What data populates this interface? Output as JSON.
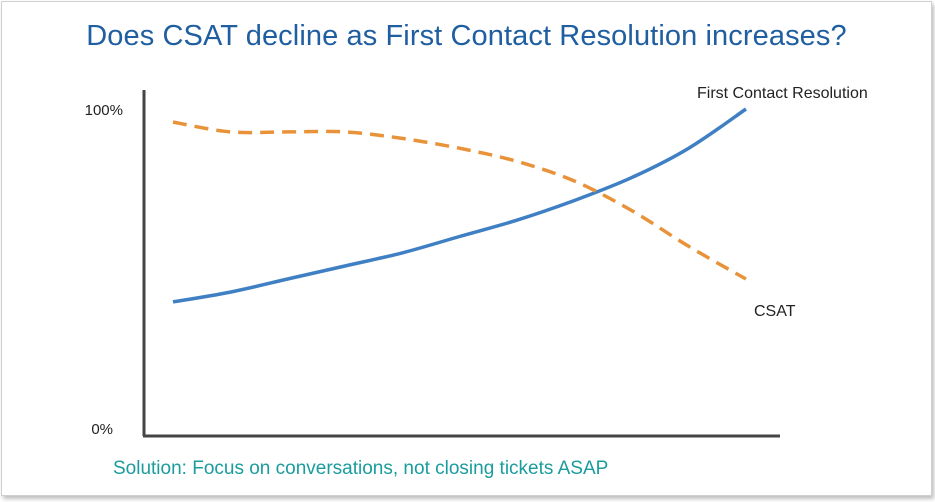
{
  "slide": {
    "title": "Does CSAT decline as First Contact Resolution increases?",
    "footer": "Solution: Focus on conversations, not closing tickets ASAP"
  },
  "colors": {
    "title": "#1f5ea0",
    "fcr_line": "#3f7fc4",
    "csat_line": "#e8933a",
    "footer": "#1b9c9c",
    "axis": "#444444"
  },
  "chart_data": {
    "type": "line",
    "title": "Does CSAT decline as First Contact Resolution increases?",
    "xlabel": "",
    "ylabel": "",
    "ylim": [
      0,
      100
    ],
    "x_ticks_shown": false,
    "y_tick_labels": [
      "100%",
      "0%"
    ],
    "grid": false,
    "legend": "inline labels at line ends",
    "x": [
      0,
      1,
      2,
      3,
      4,
      5,
      6,
      7,
      8,
      9,
      10
    ],
    "series": [
      {
        "name": "First Contact Resolution",
        "style": "solid",
        "color": "#3f7fc4",
        "values": [
          41,
          44,
          48,
          52,
          56,
          61,
          66,
          72,
          79,
          88,
          100
        ]
      },
      {
        "name": "CSAT",
        "style": "dashed",
        "color": "#e8933a",
        "values": [
          96,
          93,
          93,
          93,
          91,
          88,
          84,
          78,
          69,
          58,
          48
        ]
      }
    ]
  }
}
